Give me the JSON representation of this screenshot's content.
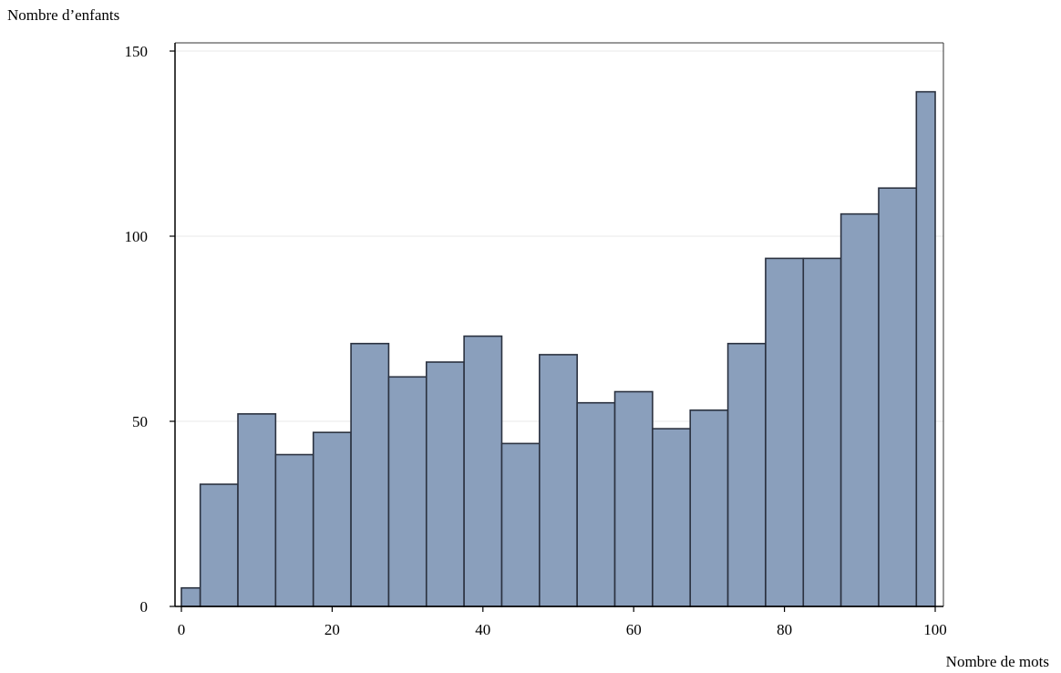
{
  "chart_data": {
    "type": "bar",
    "title": "",
    "ylabel": "Nombre d’enfants",
    "xlabel": "Nombre de mots",
    "xlim": [
      0,
      100
    ],
    "ylim": [
      0,
      150
    ],
    "x_ticks": [
      "0",
      "20",
      "40",
      "60",
      "80",
      "100"
    ],
    "y_ticks": [
      "0",
      "50",
      "100",
      "150"
    ],
    "grid": "horizontal",
    "bins": [
      {
        "x0": 0,
        "x1": 2.5,
        "value": 5
      },
      {
        "x0": 2.5,
        "x1": 7.5,
        "value": 33
      },
      {
        "x0": 7.5,
        "x1": 12.5,
        "value": 52
      },
      {
        "x0": 12.5,
        "x1": 17.5,
        "value": 41
      },
      {
        "x0": 17.5,
        "x1": 22.5,
        "value": 47
      },
      {
        "x0": 22.5,
        "x1": 27.5,
        "value": 71
      },
      {
        "x0": 27.5,
        "x1": 32.5,
        "value": 62
      },
      {
        "x0": 32.5,
        "x1": 37.5,
        "value": 66
      },
      {
        "x0": 37.5,
        "x1": 42.5,
        "value": 73
      },
      {
        "x0": 42.5,
        "x1": 47.5,
        "value": 44
      },
      {
        "x0": 47.5,
        "x1": 52.5,
        "value": 68
      },
      {
        "x0": 52.5,
        "x1": 57.5,
        "value": 55
      },
      {
        "x0": 57.5,
        "x1": 62.5,
        "value": 58
      },
      {
        "x0": 62.5,
        "x1": 67.5,
        "value": 48
      },
      {
        "x0": 67.5,
        "x1": 72.5,
        "value": 53
      },
      {
        "x0": 72.5,
        "x1": 77.5,
        "value": 71
      },
      {
        "x0": 77.5,
        "x1": 82.5,
        "value": 94
      },
      {
        "x0": 82.5,
        "x1": 87.5,
        "value": 94
      },
      {
        "x0": 87.5,
        "x1": 92.5,
        "value": 106
      },
      {
        "x0": 92.5,
        "x1": 97.5,
        "value": 113
      },
      {
        "x0": 97.5,
        "x1": 100,
        "value": 139
      }
    ],
    "colors": {
      "bar_fill": "#8a9fbc",
      "bar_stroke": "#2b3240",
      "grid": "#e8e8e8",
      "axis": "#000000"
    }
  }
}
